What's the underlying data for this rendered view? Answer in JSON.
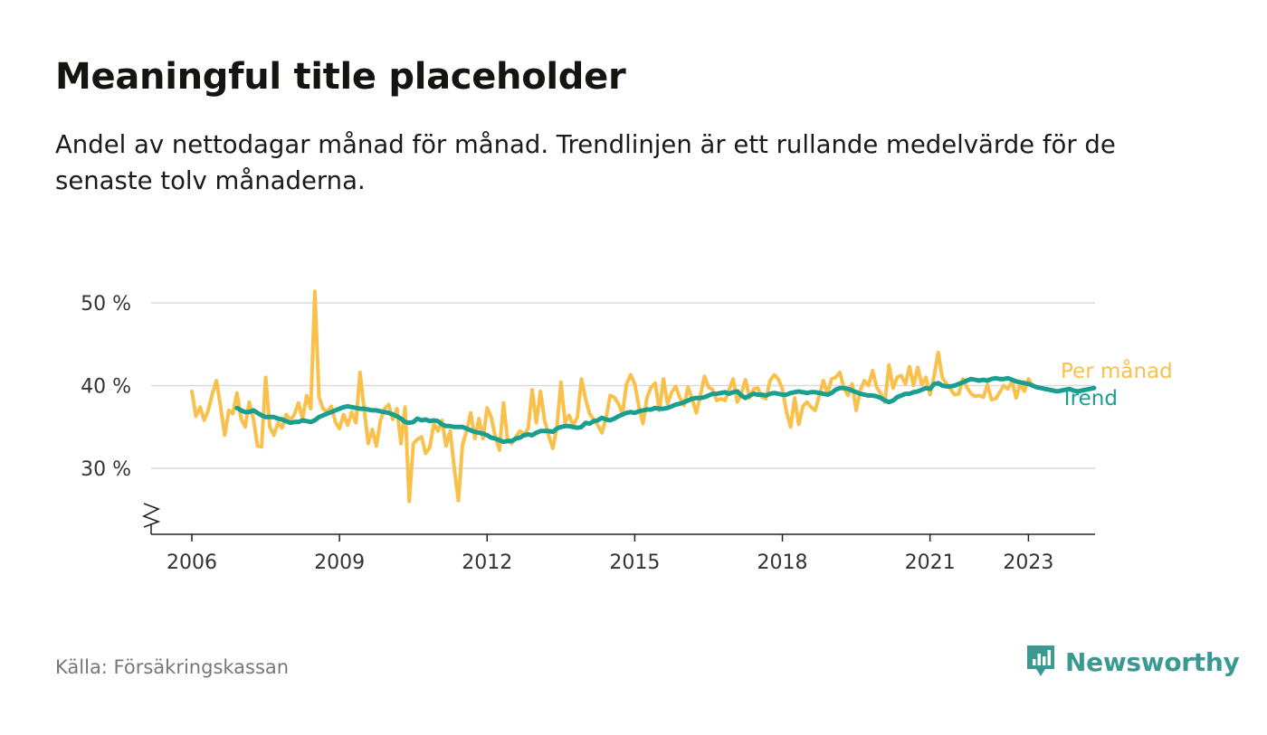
{
  "header": {
    "title": "Meaningful title placeholder",
    "subtitle": "Andel av nettodagar månad för månad. Trendlinjen är ett rullande medelvärde för de senaste tolv månaderna."
  },
  "footer": {
    "source": "Källa: Försäkringskassan",
    "brand": "Newsworthy"
  },
  "colors": {
    "monthly": "#f9c04c",
    "trend": "#1a9e8f",
    "grid": "#d9d9d9",
    "axis": "#222222",
    "brand": "#3a9a92"
  },
  "chart_data": {
    "type": "line",
    "title": "Meaningful title placeholder",
    "subtitle": "Andel av nettodagar månad för månad. Trendlinjen är ett rullande medelvärde för de senaste tolv månaderna.",
    "y_unit": "%",
    "ylim": [
      22,
      52
    ],
    "yticks": [
      30,
      40,
      50
    ],
    "ytick_labels": [
      "30 %",
      "40 %",
      "50 %"
    ],
    "x_domain": [
      "2006-01",
      "2024-01"
    ],
    "xticks": [
      "2006",
      "2009",
      "2012",
      "2015",
      "2018",
      "2021",
      "2023"
    ],
    "grid": true,
    "axis_break": true,
    "legend": "direct labels at right end of lines",
    "series": [
      {
        "name": "Per månad",
        "color": "#f9c04c",
        "start": "2006-01",
        "values": [
          39.3,
          36.3,
          37.4,
          35.8,
          37.0,
          39.0,
          40.6,
          37.5,
          34.0,
          37.0,
          36.6,
          39.1,
          36.0,
          35.0,
          38.0,
          36.0,
          32.7,
          32.6,
          41.0,
          35.0,
          34.0,
          35.5,
          34.9,
          36.5,
          35.8,
          36.5,
          37.9,
          36.0,
          38.8,
          37.2,
          51.4,
          38.6,
          37.2,
          36.8,
          37.5,
          35.6,
          34.8,
          36.5,
          35.2,
          36.8,
          35.5,
          41.6,
          37.2,
          33.0,
          34.7,
          32.7,
          35.8,
          37.2,
          37.7,
          35.9,
          37.2,
          33.0,
          37.4,
          26.0,
          33.0,
          33.5,
          33.8,
          31.8,
          32.5,
          35.4,
          34.5,
          35.8,
          32.7,
          34.5,
          30.0,
          26.1,
          32.9,
          34.5,
          36.7,
          33.6,
          36.0,
          33.6,
          37.3,
          36.2,
          33.8,
          32.2,
          37.9,
          33.3,
          33.0,
          33.8,
          34.5,
          34.1,
          34.8,
          39.5,
          35.5,
          39.3,
          35.8,
          34.0,
          32.4,
          34.9,
          40.4,
          35.5,
          36.4,
          35.2,
          36.2,
          40.8,
          38.4,
          36.6,
          35.9,
          35.2,
          34.3,
          36.1,
          38.8,
          38.6,
          37.8,
          36.6,
          40.2,
          41.3,
          40.2,
          37.5,
          35.4,
          38.6,
          39.8,
          40.3,
          37.0,
          40.8,
          37.8,
          39.2,
          39.9,
          38.5,
          37.6,
          39.8,
          38.4,
          36.7,
          38.8,
          41.1,
          39.8,
          39.5,
          38.2,
          38.4,
          38.2,
          39.5,
          40.8,
          38.0,
          39.0,
          40.7,
          38.5,
          39.6,
          39.7,
          38.6,
          38.4,
          40.6,
          41.3,
          40.8,
          39.6,
          36.8,
          35.0,
          38.5,
          35.3,
          37.5,
          38.0,
          37.4,
          37.0,
          38.8,
          40.6,
          39.0,
          40.8,
          41.0,
          41.6,
          39.7,
          38.8,
          40.2,
          37.0,
          39.4,
          40.6,
          40.0,
          41.8,
          39.8,
          39.0,
          38.0,
          42.5,
          39.7,
          41.0,
          41.2,
          40.2,
          42.3,
          40.0,
          42.2,
          40.1,
          41.0,
          38.9,
          41.2,
          44.0,
          41.0,
          40.2,
          39.6,
          38.9,
          39.0,
          40.8,
          39.8,
          39.0,
          38.7,
          38.8,
          38.6,
          40.1,
          38.3,
          38.4,
          39.2,
          40.0,
          39.6,
          40.5,
          38.5,
          40.3,
          39.3,
          40.8,
          40.0
        ]
      },
      {
        "name": "Trend",
        "color": "#1a9e8f",
        "start": "2006-12",
        "values": [
          37.3,
          37.0,
          36.8,
          36.8,
          37.0,
          36.7,
          36.4,
          36.2,
          36.2,
          36.2,
          36.0,
          35.9,
          35.7,
          35.5,
          35.6,
          35.6,
          35.8,
          35.7,
          35.6,
          35.8,
          36.2,
          36.4,
          36.6,
          36.8,
          37.0,
          37.2,
          37.4,
          37.5,
          37.4,
          37.3,
          37.2,
          37.2,
          37.1,
          37.0,
          37.0,
          36.9,
          36.8,
          36.7,
          36.5,
          36.3,
          36.0,
          35.6,
          35.5,
          35.6,
          36.0,
          35.8,
          35.9,
          35.7,
          35.8,
          35.7,
          35.3,
          35.1,
          35.1,
          35.0,
          35.0,
          35.0,
          34.8,
          34.6,
          34.4,
          34.3,
          34.2,
          34.0,
          33.7,
          33.6,
          33.4,
          33.2,
          33.3,
          33.3,
          33.6,
          33.7,
          34.0,
          34.1,
          34.0,
          34.3,
          34.5,
          34.5,
          34.5,
          34.4,
          34.8,
          35.0,
          35.1,
          35.1,
          35.0,
          34.9,
          35.0,
          35.5,
          35.4,
          35.7,
          35.8,
          36.1,
          35.9,
          35.8,
          36.0,
          36.3,
          36.5,
          36.7,
          36.8,
          36.7,
          36.9,
          37.0,
          37.1,
          37.1,
          37.3,
          37.2,
          37.2,
          37.3,
          37.5,
          37.7,
          37.8,
          38.0,
          38.2,
          38.4,
          38.5,
          38.5,
          38.6,
          38.8,
          39.0,
          39.0,
          39.1,
          39.2,
          39.0,
          39.2,
          39.3,
          38.8,
          38.5,
          38.8,
          39.0,
          38.9,
          38.9,
          38.8,
          39.0,
          39.1,
          39.0,
          38.9,
          38.9,
          39.1,
          39.2,
          39.3,
          39.2,
          39.1,
          39.2,
          39.2,
          39.1,
          39.0,
          38.9,
          39.1,
          39.5,
          39.7,
          39.7,
          39.6,
          39.4,
          39.2,
          39.0,
          38.9,
          38.8,
          38.8,
          38.7,
          38.5,
          38.2,
          38.0,
          38.2,
          38.6,
          38.8,
          39.0,
          39.0,
          39.2,
          39.3,
          39.5,
          39.7,
          39.6,
          40.2,
          40.3,
          40.0,
          39.9,
          39.9,
          40.0,
          40.2,
          40.4,
          40.6,
          40.8,
          40.7,
          40.6,
          40.7,
          40.6,
          40.8,
          40.9,
          40.8,
          40.8,
          40.9,
          40.7,
          40.5,
          40.4,
          40.3,
          40.2,
          40.0,
          39.8,
          39.7,
          39.6,
          39.5,
          39.4,
          39.3,
          39.4,
          39.5,
          39.6,
          39.4,
          39.3,
          39.4,
          39.5,
          39.6,
          39.7
        ]
      }
    ]
  }
}
